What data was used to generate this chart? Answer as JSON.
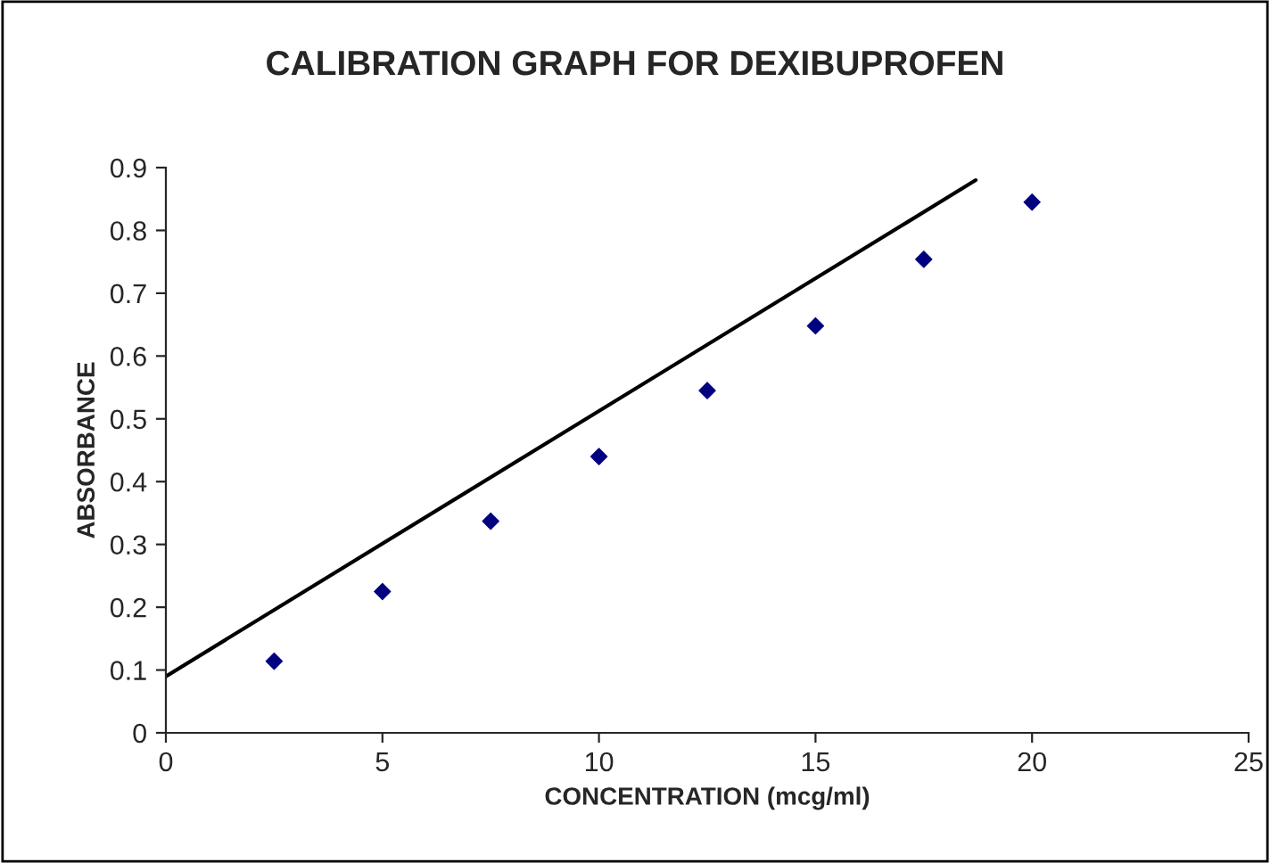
{
  "chart_data": {
    "type": "scatter",
    "title": "CALIBRATION GRAPH FOR DEXIBUPROFEN",
    "xlabel": "CONCENTRATION (mcg/ml)",
    "ylabel": "ABSORBANCE",
    "series": [
      {
        "color": "#000080",
        "marker": "diamond",
        "x": [
          2.5,
          5,
          7.5,
          10,
          12.5,
          15,
          17.5,
          20
        ],
        "values": [
          0.114,
          0.225,
          0.337,
          0.44,
          0.545,
          0.648,
          0.754,
          0.845
        ]
      },
      {
        "type": "line",
        "color": "#000000",
        "marker": "none",
        "line_style": "solid",
        "x": [
          0,
          18.7
        ],
        "values": [
          0.09,
          0.88
        ]
      }
    ],
    "xlim": [
      0,
      25
    ],
    "xticks": [
      0,
      5,
      10,
      15,
      20,
      25
    ],
    "ylim": [
      0,
      0.9
    ],
    "yticks": [
      0,
      0.1,
      0.2,
      0.3,
      0.4,
      0.5,
      0.6,
      0.7,
      0.8,
      0.9
    ],
    "grid": false,
    "legend": false
  }
}
